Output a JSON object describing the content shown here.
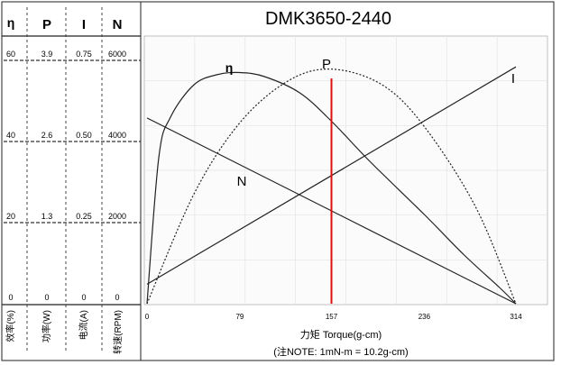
{
  "chart_data": {
    "type": "line",
    "title": "DMK3650-2440",
    "xlabel": "力矩 Torque(g-cm)",
    "note": "(注NOTE: 1mN-m = 10.2g-cm)",
    "x_ticks": [
      "0",
      "79",
      "157",
      "236",
      "314"
    ],
    "xlim": [
      0,
      314
    ],
    "left_table": {
      "headers": [
        "η",
        "P",
        "I",
        "N"
      ],
      "rows": [
        [
          "60",
          "3.9",
          "0.75",
          "6000"
        ],
        [
          "40",
          "2.6",
          "0.50",
          "4000"
        ],
        [
          "20",
          "1.3",
          "0.25",
          "2000"
        ],
        [
          "0",
          "0",
          "0",
          "0"
        ]
      ],
      "axis_labels": [
        "效率(%)",
        "功率(W)",
        "电流(A)",
        "转速(RPM)"
      ]
    },
    "series": [
      {
        "name": "η",
        "unit": "%",
        "ylim": [
          0,
          60
        ],
        "x": [
          0,
          10,
          20,
          40,
          60,
          79,
          100,
          130,
          157,
          190,
          236,
          270,
          300,
          314
        ],
        "y": [
          0,
          36,
          46,
          54,
          56.5,
          57,
          56,
          52,
          45,
          35,
          22,
          12,
          4,
          0
        ]
      },
      {
        "name": "P",
        "unit": "W",
        "ylim": [
          0,
          3.9
        ],
        "style": "dotted",
        "x": [
          0,
          40,
          79,
          120,
          157,
          200,
          236,
          280,
          314
        ],
        "y": [
          0,
          1.76,
          2.9,
          3.57,
          3.76,
          3.51,
          2.84,
          1.54,
          0
        ]
      },
      {
        "name": "I",
        "unit": "A",
        "ylim": [
          0,
          0.75
        ],
        "x": [
          0,
          314
        ],
        "y": [
          0.06,
          0.73
        ]
      },
      {
        "name": "N",
        "unit": "RPM",
        "ylim": [
          0,
          6000
        ],
        "x": [
          0,
          314
        ],
        "y": [
          4580,
          0
        ]
      }
    ],
    "marker": {
      "x": 157,
      "color": "#e01010"
    },
    "grid": true
  }
}
